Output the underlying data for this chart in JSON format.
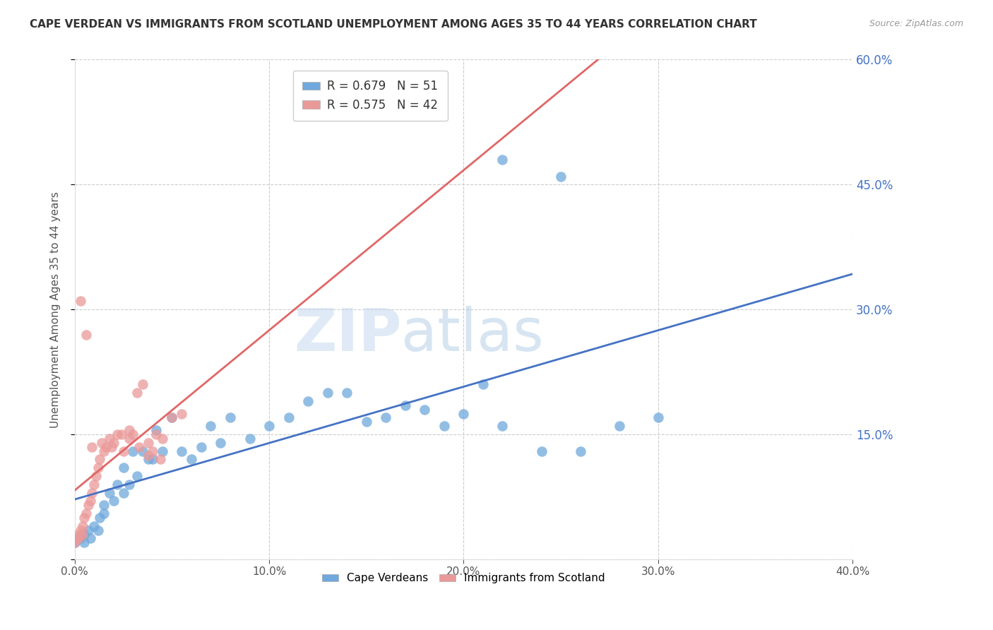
{
  "title": "CAPE VERDEAN VS IMMIGRANTS FROM SCOTLAND UNEMPLOYMENT AMONG AGES 35 TO 44 YEARS CORRELATION CHART",
  "source": "Source: ZipAtlas.com",
  "ylabel": "Unemployment Among Ages 35 to 44 years",
  "xlim": [
    0.0,
    0.4
  ],
  "ylim": [
    0.0,
    0.6
  ],
  "xticks": [
    0.0,
    0.1,
    0.2,
    0.3,
    0.4
  ],
  "yticks": [
    0.0,
    0.15,
    0.3,
    0.45,
    0.6
  ],
  "blue_R": 0.679,
  "blue_N": 51,
  "pink_R": 0.575,
  "pink_N": 42,
  "blue_color": "#6fa8dc",
  "pink_color": "#ea9999",
  "blue_line_color": "#4472c4",
  "pink_line_color": "#e06666",
  "watermark_zip": "ZIP",
  "watermark_atlas": "atlas",
  "blue_scatter_x": [
    0.0,
    0.003,
    0.005,
    0.007,
    0.008,
    0.01,
    0.012,
    0.013,
    0.015,
    0.015,
    0.018,
    0.02,
    0.022,
    0.025,
    0.025,
    0.028,
    0.03,
    0.032,
    0.035,
    0.038,
    0.04,
    0.042,
    0.045,
    0.05,
    0.055,
    0.06,
    0.065,
    0.07,
    0.075,
    0.08,
    0.09,
    0.1,
    0.11,
    0.12,
    0.13,
    0.14,
    0.15,
    0.16,
    0.17,
    0.18,
    0.19,
    0.2,
    0.21,
    0.22,
    0.24,
    0.26,
    0.28,
    0.3,
    0.22,
    0.25,
    0.005
  ],
  "blue_scatter_y": [
    0.02,
    0.025,
    0.03,
    0.035,
    0.025,
    0.04,
    0.035,
    0.05,
    0.055,
    0.065,
    0.08,
    0.07,
    0.09,
    0.08,
    0.11,
    0.09,
    0.13,
    0.1,
    0.13,
    0.12,
    0.12,
    0.155,
    0.13,
    0.17,
    0.13,
    0.12,
    0.135,
    0.16,
    0.14,
    0.17,
    0.145,
    0.16,
    0.17,
    0.19,
    0.2,
    0.2,
    0.165,
    0.17,
    0.185,
    0.18,
    0.16,
    0.175,
    0.21,
    0.16,
    0.13,
    0.13,
    0.16,
    0.17,
    0.48,
    0.46,
    0.02
  ],
  "pink_scatter_x": [
    0.0,
    0.001,
    0.002,
    0.003,
    0.004,
    0.005,
    0.006,
    0.007,
    0.008,
    0.009,
    0.01,
    0.011,
    0.012,
    0.013,
    0.015,
    0.016,
    0.018,
    0.02,
    0.022,
    0.025,
    0.028,
    0.03,
    0.032,
    0.035,
    0.038,
    0.04,
    0.042,
    0.045,
    0.05,
    0.055,
    0.003,
    0.006,
    0.009,
    0.014,
    0.019,
    0.024,
    0.028,
    0.033,
    0.038,
    0.044,
    0.002,
    0.004
  ],
  "pink_scatter_y": [
    0.02,
    0.025,
    0.03,
    0.035,
    0.04,
    0.05,
    0.055,
    0.065,
    0.07,
    0.08,
    0.09,
    0.1,
    0.11,
    0.12,
    0.13,
    0.135,
    0.145,
    0.14,
    0.15,
    0.13,
    0.155,
    0.15,
    0.2,
    0.21,
    0.14,
    0.13,
    0.15,
    0.145,
    0.17,
    0.175,
    0.31,
    0.27,
    0.135,
    0.14,
    0.135,
    0.15,
    0.145,
    0.135,
    0.125,
    0.12,
    0.025,
    0.03
  ],
  "background_color": "#ffffff",
  "grid_color": "#cccccc"
}
